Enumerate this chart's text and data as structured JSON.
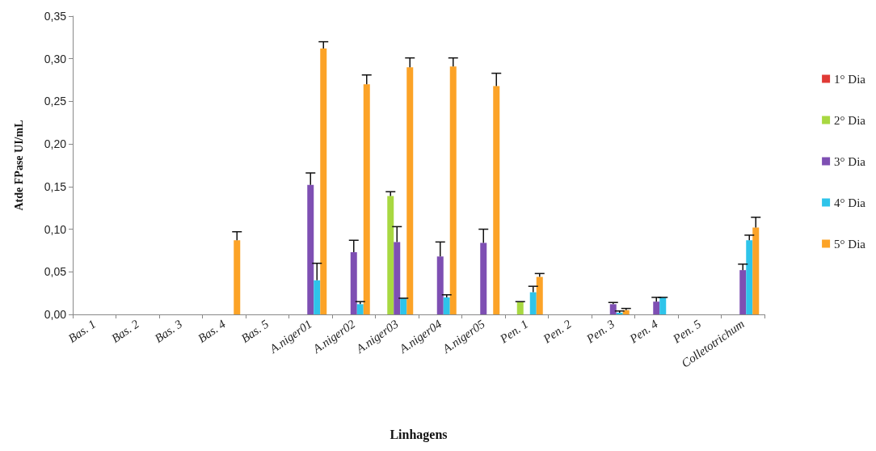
{
  "chart_data": {
    "type": "bar",
    "xlabel": "Linhagens",
    "ylabel": "Atde FPase UI/mL",
    "categories": [
      "Bas. 1",
      "Bas. 2",
      "Bas. 3",
      "Bas. 4",
      "Bas. 5",
      "A.niger01",
      "A.niger02",
      "A.niger03",
      "A.niger04",
      "A.niger05",
      "Pen. 1",
      "Pen. 2",
      "Pen. 3",
      "Pen. 4",
      "Pen. 5",
      "Colletotrichum"
    ],
    "series": [
      {
        "name": "1° Dia",
        "color": "#e03a35",
        "values": [
          0,
          0,
          0,
          0,
          0,
          0,
          0,
          0,
          0,
          0,
          0,
          0,
          0,
          0,
          0,
          0
        ]
      },
      {
        "name": "2° Dia",
        "color": "#a8d841",
        "values": [
          0,
          0,
          0,
          0,
          0,
          0,
          0,
          0.139,
          0,
          0,
          0.015,
          0,
          0,
          0,
          0,
          0
        ],
        "errors": [
          null,
          null,
          null,
          null,
          null,
          null,
          null,
          0.005,
          null,
          null,
          0,
          null,
          null,
          null,
          null,
          null
        ]
      },
      {
        "name": "3° Dia",
        "color": "#7e4fb3",
        "values": [
          0,
          0,
          0,
          0,
          0,
          0.152,
          0.073,
          0.085,
          0.068,
          0.084,
          0,
          0,
          0.012,
          0.015,
          0,
          0.052
        ],
        "errors": [
          null,
          null,
          null,
          null,
          null,
          0.014,
          0.014,
          0.018,
          0.017,
          0.016,
          null,
          null,
          0.002,
          0.005,
          null,
          0.007
        ]
      },
      {
        "name": "4° Dia",
        "color": "#2ec4ea",
        "values": [
          0,
          0,
          0,
          0,
          0,
          0.04,
          0.012,
          0.019,
          0.02,
          0,
          0.026,
          0,
          0.002,
          0.02,
          0,
          0.087
        ],
        "errors": [
          null,
          null,
          null,
          null,
          null,
          0.02,
          0.003,
          0,
          0.003,
          null,
          0.007,
          null,
          0.002,
          0,
          null,
          0.006
        ]
      },
      {
        "name": "5° Dia",
        "color": "#fca327",
        "values": [
          0,
          0,
          0,
          0.087,
          0,
          0.312,
          0.27,
          0.29,
          0.291,
          0.268,
          0.044,
          0,
          0.005,
          0,
          0,
          0.102
        ],
        "errors": [
          null,
          null,
          null,
          0.01,
          null,
          0.008,
          0.011,
          0.011,
          0.01,
          0.015,
          0.004,
          null,
          0.002,
          null,
          null,
          0.012
        ]
      }
    ],
    "ylim": [
      0,
      0.35
    ],
    "yticks": [
      {
        "value": 0,
        "label": "0,00"
      },
      {
        "value": 0.05,
        "label": "0,05"
      },
      {
        "value": 0.1,
        "label": "0,10"
      },
      {
        "value": 0.15,
        "label": "0,15"
      },
      {
        "value": 0.2,
        "label": "0,20"
      },
      {
        "value": 0.25,
        "label": "0,25"
      },
      {
        "value": 0.3,
        "label": "0,30"
      },
      {
        "value": 0.35,
        "label": "0,35"
      }
    ],
    "grid": false,
    "legend": "right"
  }
}
